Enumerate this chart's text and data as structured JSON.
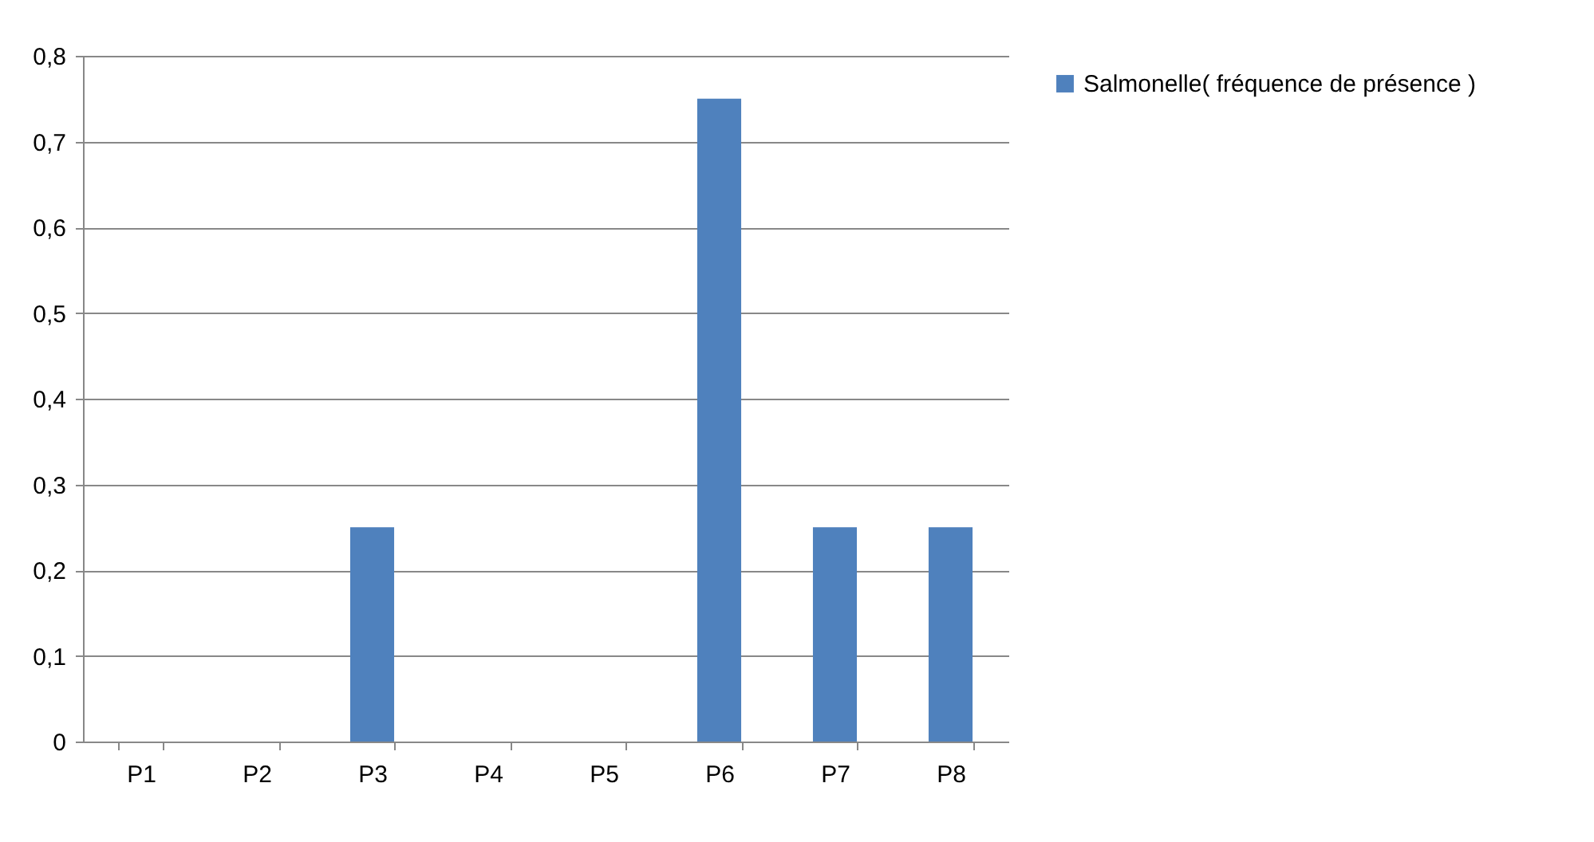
{
  "chart_data": {
    "type": "bar",
    "categories": [
      "P1",
      "P2",
      "P3",
      "P4",
      "P5",
      "P6",
      "P7",
      "P8"
    ],
    "series": [
      {
        "name": "Salmonelle( fréquence de présence )",
        "color": "#4f81bd",
        "values": [
          0,
          0,
          0.25,
          0,
          0,
          0.75,
          0.25,
          0.25
        ]
      }
    ],
    "ylim": [
      0,
      0.8
    ],
    "yticks": [
      0,
      {
        "value": 0.1,
        "label": "0,1"
      },
      {
        "value": 0.2,
        "label": "0,2"
      },
      {
        "value": 0.3,
        "label": "0,3"
      },
      {
        "value": 0.4,
        "label": "0,4"
      },
      {
        "value": 0.5,
        "label": "0,5"
      },
      {
        "value": 0.6,
        "label": "0,6"
      },
      {
        "value": 0.7,
        "label": "0,7"
      },
      {
        "value": 0.8,
        "label": "0,8"
      }
    ],
    "grid": "y",
    "legend": "right"
  }
}
